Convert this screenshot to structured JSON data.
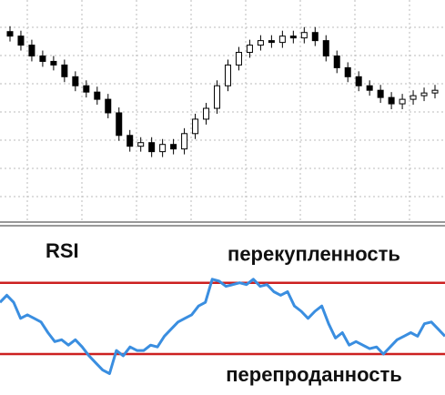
{
  "chart_data": [
    {
      "type": "candlestick",
      "open": [
        215,
        210,
        200,
        188,
        182,
        178,
        165,
        155,
        148,
        140,
        125,
        100,
        88,
        92,
        82,
        90,
        85,
        102,
        118,
        130,
        155,
        178,
        192,
        200,
        205,
        203,
        210,
        208,
        214,
        205,
        188,
        175,
        165,
        155,
        150,
        142,
        135,
        140,
        144,
        147
      ],
      "high": [
        221,
        216,
        206,
        194,
        188,
        184,
        171,
        161,
        154,
        146,
        131,
        106,
        98,
        98,
        96,
        96,
        108,
        124,
        136,
        161,
        184,
        198,
        206,
        211,
        211,
        216,
        216,
        220,
        220,
        211,
        194,
        181,
        171,
        161,
        156,
        148,
        146,
        150,
        153,
        156
      ],
      "low": [
        204,
        194,
        182,
        176,
        172,
        159,
        149,
        142,
        134,
        119,
        94,
        82,
        82,
        76,
        76,
        79,
        79,
        96,
        112,
        124,
        149,
        172,
        186,
        194,
        197,
        197,
        202,
        202,
        199,
        182,
        169,
        159,
        149,
        144,
        136,
        129,
        129,
        134,
        138,
        141
      ],
      "close": [
        210,
        200,
        188,
        182,
        178,
        165,
        155,
        148,
        140,
        125,
        100,
        88,
        92,
        82,
        90,
        85,
        102,
        118,
        130,
        155,
        178,
        192,
        200,
        205,
        203,
        210,
        208,
        214,
        205,
        188,
        175,
        165,
        155,
        150,
        142,
        135,
        140,
        144,
        147,
        150
      ],
      "up_color": "#ffffff",
      "down_color": "#000000",
      "ylim": [
        5,
        250
      ],
      "grid": true
    },
    {
      "type": "line",
      "title": "RSI",
      "series": [
        {
          "name": "RSI",
          "color": "#3a8ee0",
          "values": [
            59,
            63,
            59,
            50,
            52,
            50,
            48,
            42,
            37,
            38,
            35,
            38,
            34,
            29,
            25,
            21,
            19,
            32,
            29,
            34,
            32,
            32,
            35,
            34,
            40,
            44,
            48,
            50,
            52,
            57,
            59,
            72,
            71,
            68,
            69,
            70,
            69,
            72,
            68,
            69,
            65,
            63,
            65,
            57,
            54,
            50,
            54,
            57,
            47,
            39,
            42,
            35,
            37,
            35,
            33,
            34,
            30,
            34,
            38,
            40,
            42,
            40,
            47,
            48,
            44,
            40
          ]
        }
      ],
      "levels": [
        {
          "value": 70,
          "label": "перекупленность",
          "color": "#cc2020"
        },
        {
          "value": 30,
          "label": "перепроданность",
          "color": "#cc2020"
        }
      ],
      "ylim": [
        7,
        100
      ]
    }
  ]
}
